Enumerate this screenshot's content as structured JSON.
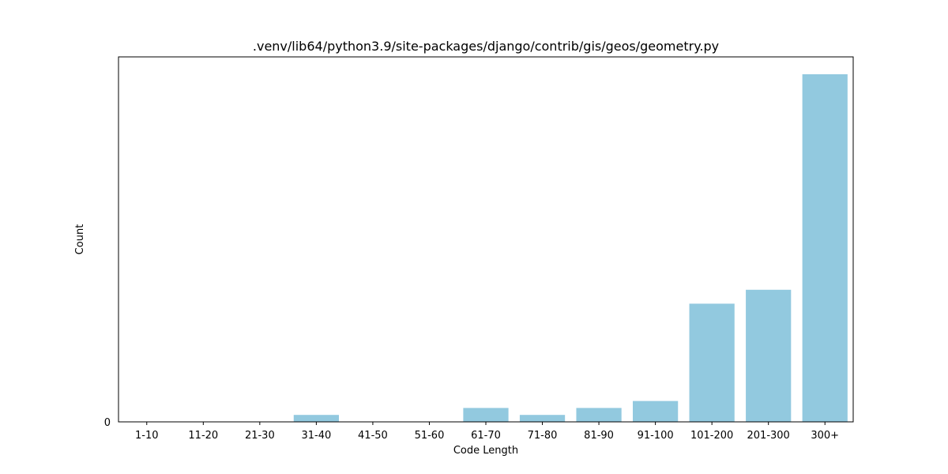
{
  "chart_data": {
    "type": "bar",
    "title": ".venv/lib64/python3.9/site-packages/django/contrib/gis/geos/geometry.py",
    "xlabel": "Code Length",
    "ylabel": "Count",
    "categories": [
      "1-10",
      "11-20",
      "21-30",
      "31-40",
      "41-50",
      "51-60",
      "61-70",
      "71-80",
      "81-90",
      "91-100",
      "101-200",
      "201-300",
      "300+"
    ],
    "values": [
      0,
      0,
      0,
      1,
      0,
      0,
      2,
      1,
      2,
      3,
      17,
      19,
      50
    ],
    "ylim": [
      0,
      50
    ],
    "bar_color": "#92c9df",
    "grid": false,
    "legend": "none"
  }
}
